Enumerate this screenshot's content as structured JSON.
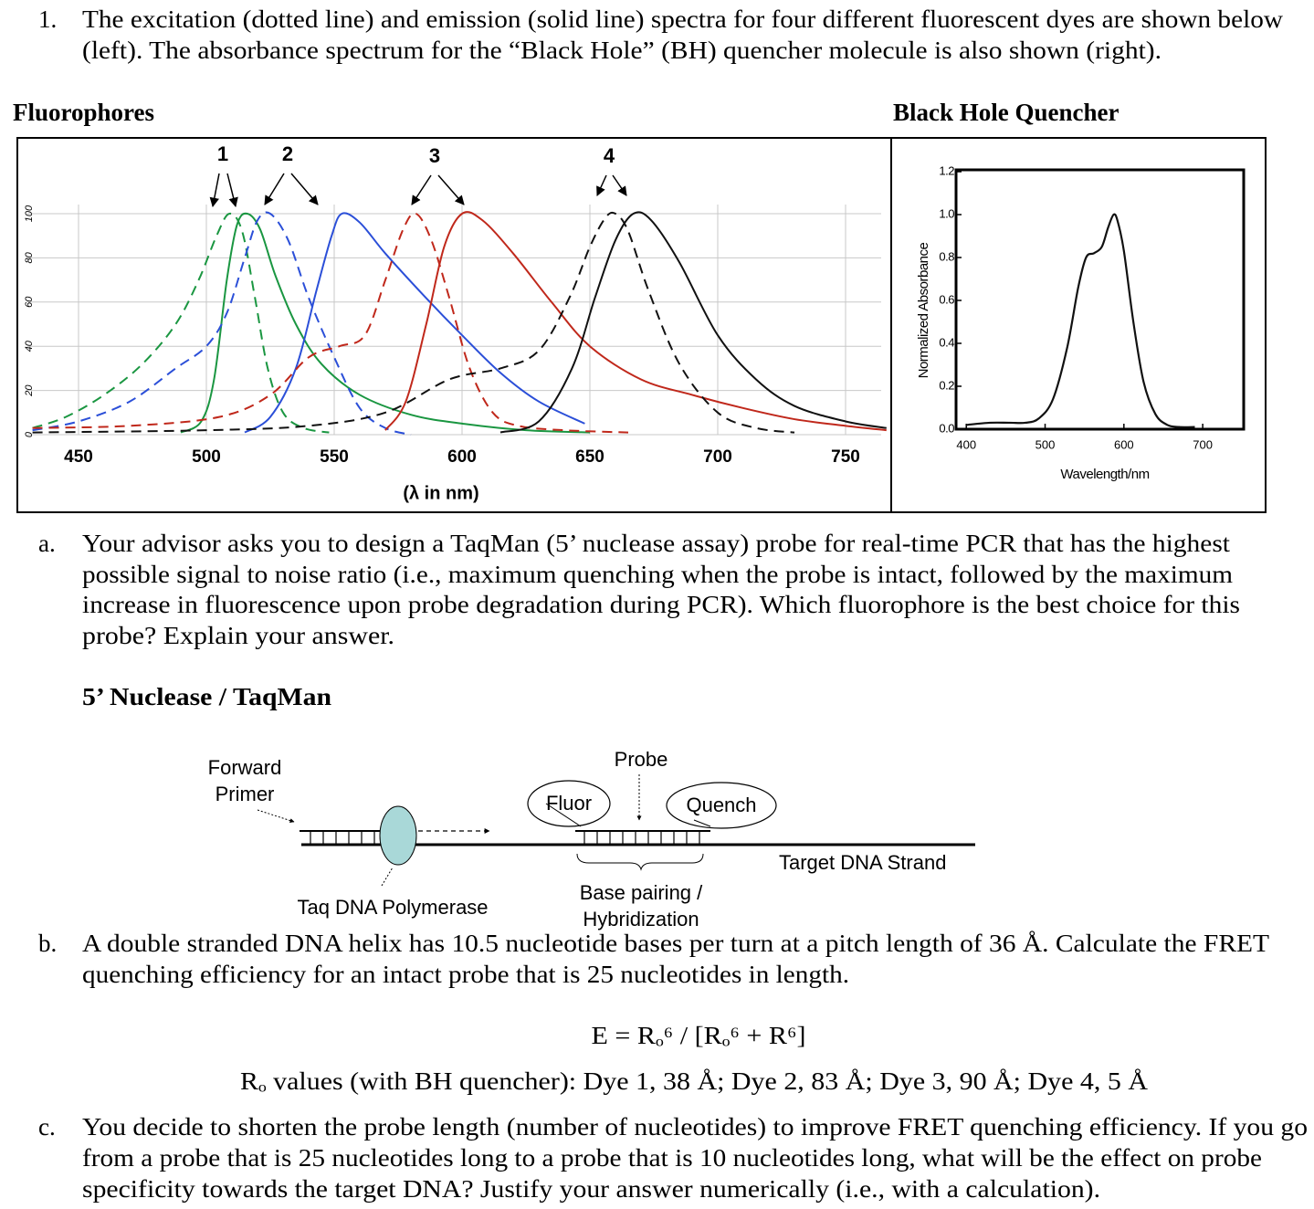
{
  "question": {
    "number": "1.",
    "lines": [
      "The excitation (dotted line) and emission (solid line) spectra for four different fluorescent dyes are shown below",
      "(left).  The absorbance spectrum for the “Black Hole” (BH) quencher molecule is also shown (right)."
    ]
  },
  "chart_data": [
    {
      "type": "line",
      "title": "Fluorophores",
      "x_label": "(λ in nm)",
      "annotations": [
        "1",
        "2",
        "3",
        "4"
      ],
      "xlim": [
        428,
        766
      ],
      "ylim": [
        0,
        100
      ],
      "xticks": [
        450,
        500,
        550,
        600,
        650,
        700,
        750
      ],
      "yticks": [
        0,
        20,
        40,
        60,
        80,
        100
      ],
      "grid": true,
      "series": [
        {
          "color": "#1a9641",
          "style": "dashed",
          "x": [
            432,
            445,
            460,
            475,
            488,
            497,
            504,
            509,
            514,
            519,
            524,
            530,
            538,
            548
          ],
          "values": [
            3,
            8,
            18,
            32,
            50,
            70,
            90,
            100,
            92,
            62,
            30,
            10,
            3,
            1
          ]
        },
        {
          "color": "#1a9641",
          "style": "solid",
          "x": [
            490,
            498,
            503,
            508,
            512,
            516,
            521,
            527,
            535,
            545,
            560,
            580,
            600,
            625,
            650
          ],
          "values": [
            1,
            6,
            25,
            70,
            95,
            100,
            93,
            72,
            50,
            32,
            18,
            9,
            5,
            2,
            1
          ]
        },
        {
          "color": "#2b4fd8",
          "style": "dashed",
          "x": [
            432,
            450,
            470,
            488,
            500,
            508,
            515,
            520,
            525,
            532,
            540,
            550,
            560,
            570,
            580
          ],
          "values": [
            2,
            6,
            15,
            30,
            40,
            55,
            80,
            97,
            100,
            88,
            62,
            35,
            12,
            3,
            0
          ]
        },
        {
          "color": "#2b4fd8",
          "style": "solid",
          "x": [
            515,
            525,
            535,
            543,
            549,
            553,
            560,
            570,
            585,
            600,
            615,
            630,
            648
          ],
          "values": [
            1,
            8,
            30,
            65,
            90,
            100,
            96,
            82,
            63,
            45,
            28,
            15,
            5
          ]
        },
        {
          "color": "#c0281b",
          "style": "dashed",
          "x": [
            432,
            470,
            505,
            525,
            540,
            552,
            562,
            570,
            577,
            582,
            588,
            595,
            603,
            612,
            622,
            640,
            665
          ],
          "values": [
            3,
            4,
            8,
            18,
            35,
            40,
            45,
            70,
            93,
            100,
            88,
            62,
            30,
            10,
            4,
            2,
            1
          ]
        },
        {
          "color": "#c0281b",
          "style": "solid",
          "x": [
            570,
            578,
            586,
            593,
            600,
            608,
            620,
            635,
            650,
            670,
            690,
            710,
            730,
            750,
            766
          ],
          "values": [
            2,
            15,
            50,
            85,
            100,
            97,
            82,
            60,
            40,
            25,
            18,
            12,
            7,
            4,
            2
          ]
        },
        {
          "color": "#111111",
          "style": "dashed",
          "x": [
            432,
            500,
            540,
            570,
            595,
            615,
            630,
            642,
            650,
            656,
            660,
            665,
            673,
            685,
            700,
            715,
            730
          ],
          "values": [
            1,
            2,
            4,
            10,
            25,
            30,
            38,
            62,
            85,
            98,
            100,
            92,
            65,
            32,
            10,
            3,
            1
          ]
        },
        {
          "color": "#111111",
          "style": "solid",
          "x": [
            615,
            630,
            643,
            652,
            660,
            667,
            674,
            685,
            700,
            715,
            730,
            750,
            766
          ],
          "values": [
            1,
            6,
            30,
            62,
            88,
            100,
            97,
            78,
            45,
            25,
            13,
            6,
            3
          ]
        }
      ]
    },
    {
      "type": "line",
      "title": "Black Hole Quencher",
      "x_label": "Wavelength/nm",
      "y_label": "Normalized Absorbance",
      "xlim": [
        387,
        752
      ],
      "ylim": [
        0,
        1.2
      ],
      "xticks": [
        400,
        500,
        600,
        700
      ],
      "yticks": [
        {
          "value": 0,
          "label": "0.0"
        },
        0.2,
        0.4,
        0.6,
        0.8,
        {
          "value": 1,
          "label": "1.0"
        },
        1.2
      ],
      "series": [
        {
          "color": "#111111",
          "style": "solid",
          "x": [
            400,
            430,
            455,
            475,
            492,
            510,
            528,
            542,
            552,
            562,
            572,
            580,
            587,
            592,
            600,
            612,
            625,
            640,
            655,
            670,
            690
          ],
          "values": [
            0.02,
            0.03,
            0.03,
            0.03,
            0.05,
            0.14,
            0.38,
            0.66,
            0.8,
            0.82,
            0.85,
            0.94,
            1.0,
            0.97,
            0.83,
            0.5,
            0.22,
            0.07,
            0.02,
            0.01,
            0.01
          ]
        }
      ]
    }
  ],
  "part_a": {
    "label": "a.",
    "lines": [
      "Your advisor asks you to design a TaqMan (5’ nuclease assay) probe for real-time PCR that has the highest",
      "possible signal to noise ratio (i.e., maximum quenching when the probe is intact, followed by the maximum",
      "increase in fluorescence upon probe degradation during PCR).  Which fluorophore is the best choice for this",
      "probe?  Explain your answer."
    ]
  },
  "diagram": {
    "heading": "5’ Nuclease / TaqMan",
    "forward_primer": [
      "Forward",
      "Primer"
    ],
    "probe": "Probe",
    "fluor": "Fluor",
    "quench": "Quench",
    "target": "Target DNA Strand",
    "polymerase": "Taq DNA Polymerase",
    "base_pairing": [
      "Base pairing /",
      "Hybridization"
    ]
  },
  "part_b": {
    "label": "b.",
    "lines": [
      "A double stranded DNA helix has 10.5 nucleotide bases per turn at a pitch length of 36 Å.  Calculate the FRET",
      "quenching efficiency for an intact probe that is 25 nucleotides in length."
    ],
    "equation": "E = Rₒ⁶ / [Rₒ⁶ + R⁶]",
    "ro_values": "Rₒ values (with BH quencher): Dye 1, 38 Å;  Dye 2, 83 Å;  Dye 3, 90 Å;  Dye 4, 5 Å"
  },
  "part_c": {
    "label": "c.",
    "lines": [
      "You decide to shorten the probe length (number of nucleotides) to improve FRET quenching efficiency.  If you go",
      "from a probe that is 25 nucleotides long to a probe that is 10 nucleotides long, what will be the effect on probe",
      "specificity towards the target DNA?   Justify your answer numerically (i.e., with a calculation)."
    ]
  }
}
